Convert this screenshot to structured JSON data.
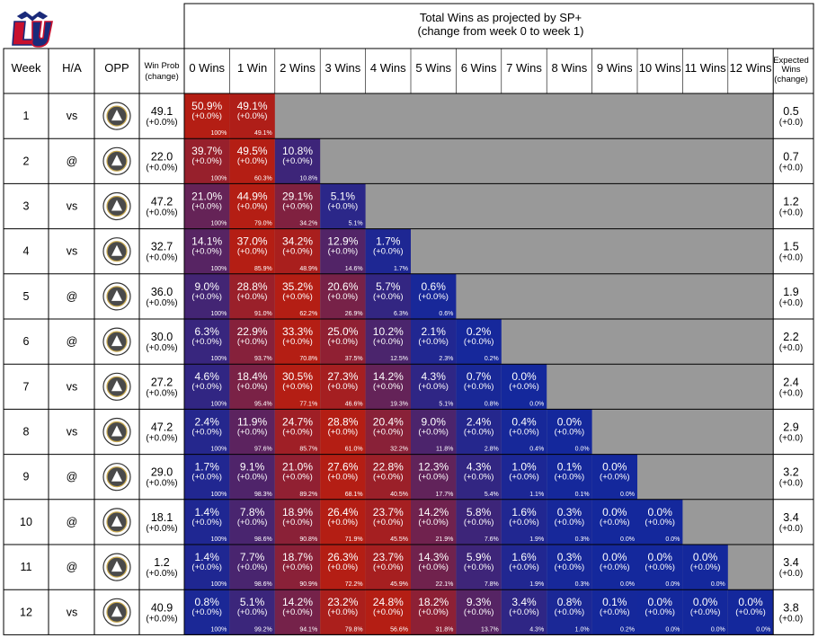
{
  "title_line1": "Total Wins as projected by SP+",
  "title_line2": "(change from week 0 to week 1)",
  "headers": {
    "week": "Week",
    "ha": "H/A",
    "opp": "OPP",
    "winprob_line1": "Win Prob",
    "winprob_line2": "(change)",
    "expected_line1": "Expected",
    "expected_line2": "Wins",
    "expected_line3": "(change)"
  },
  "colors": {
    "red": "#b41e14",
    "blue": "#14289c",
    "gray": "#999999",
    "border": "#000000"
  },
  "logo_team": "Liberty",
  "chart_data": {
    "type": "table",
    "columns": [
      "0 Wins",
      "1 Win",
      "2 Wins",
      "3 Wins",
      "4 Wins",
      "5 Wins",
      "6 Wins",
      "7 Wins",
      "8 Wins",
      "9 Wins",
      "10 Wins",
      "11 Wins",
      "12 Wins"
    ],
    "rows": [
      {
        "week": "1",
        "ha": "vs",
        "opp_logo": "Old Dominion",
        "winprob": "49.1",
        "winprob_chg": "(+0.0%)",
        "expected": "0.5",
        "expected_chg": "(+0.0)",
        "cells": [
          [
            "50.9%",
            "(+0.0%)",
            "100%"
          ],
          [
            "49.1%",
            "(+0.0%)",
            "49.1%"
          ]
        ]
      },
      {
        "week": "2",
        "ha": "@",
        "opp_logo": "Army",
        "winprob": "22.0",
        "winprob_chg": "(+0.0%)",
        "expected": "0.7",
        "expected_chg": "(+0.0)",
        "cells": [
          [
            "39.7%",
            "(+0.0%)",
            "100%"
          ],
          [
            "49.5%",
            "(+0.0%)",
            "60.3%"
          ],
          [
            "10.8%",
            "(+0.0%)",
            "10.8%"
          ]
        ]
      },
      {
        "week": "3",
        "ha": "vs",
        "opp_logo": "Western Carolina",
        "winprob": "47.2",
        "winprob_chg": "(+0.0%)",
        "expected": "1.2",
        "expected_chg": "(+0.0)",
        "cells": [
          [
            "21.0%",
            "(+0.0%)",
            "100%"
          ],
          [
            "44.9%",
            "(+0.0%)",
            "79.0%"
          ],
          [
            "29.1%",
            "(+0.0%)",
            "34.2%"
          ],
          [
            "5.1%",
            "(+0.0%)",
            "5.1%"
          ]
        ]
      },
      {
        "week": "4",
        "ha": "vs",
        "opp_logo": "North Texas",
        "winprob": "32.7",
        "winprob_chg": "(+0.0%)",
        "expected": "1.5",
        "expected_chg": "(+0.0)",
        "cells": [
          [
            "14.1%",
            "(+0.0%)",
            "100%"
          ],
          [
            "37.0%",
            "(+0.0%)",
            "85.9%"
          ],
          [
            "34.2%",
            "(+0.0%)",
            "48.9%"
          ],
          [
            "12.9%",
            "(+0.0%)",
            "14.6%"
          ],
          [
            "1.7%",
            "(+0.0%)",
            "1.7%"
          ]
        ]
      },
      {
        "week": "5",
        "ha": "@",
        "opp_logo": "New Mexico",
        "winprob": "36.0",
        "winprob_chg": "(+0.0%)",
        "expected": "1.9",
        "expected_chg": "(+0.0)",
        "cells": [
          [
            "9.0%",
            "(+0.0%)",
            "100%"
          ],
          [
            "28.8%",
            "(+0.0%)",
            "91.0%"
          ],
          [
            "35.2%",
            "(+0.0%)",
            "62.2%"
          ],
          [
            "20.6%",
            "(+0.0%)",
            "26.9%"
          ],
          [
            "5.7%",
            "(+0.0%)",
            "6.3%"
          ],
          [
            "0.6%",
            "(+0.0%)",
            "0.6%"
          ]
        ]
      },
      {
        "week": "6",
        "ha": "@",
        "opp_logo": "New Mexico State",
        "winprob": "30.0",
        "winprob_chg": "(+0.0%)",
        "expected": "2.2",
        "expected_chg": "(+0.0)",
        "cells": [
          [
            "6.3%",
            "(+0.0%)",
            "100%"
          ],
          [
            "22.9%",
            "(+0.0%)",
            "93.7%"
          ],
          [
            "33.3%",
            "(+0.0%)",
            "70.8%"
          ],
          [
            "25.0%",
            "(+0.0%)",
            "37.5%"
          ],
          [
            "10.2%",
            "(+0.0%)",
            "12.5%"
          ],
          [
            "2.1%",
            "(+0.0%)",
            "2.3%"
          ],
          [
            "0.2%",
            "(+0.0%)",
            "0.2%"
          ]
        ]
      },
      {
        "week": "7",
        "ha": "vs",
        "opp_logo": "Troy",
        "winprob": "27.2",
        "winprob_chg": "(+0.0%)",
        "expected": "2.4",
        "expected_chg": "(+0.0)",
        "cells": [
          [
            "4.6%",
            "(+0.0%)",
            "100%"
          ],
          [
            "18.4%",
            "(+0.0%)",
            "95.4%"
          ],
          [
            "30.5%",
            "(+0.0%)",
            "77.1%"
          ],
          [
            "27.3%",
            "(+0.0%)",
            "46.6%"
          ],
          [
            "14.2%",
            "(+0.0%)",
            "19.3%"
          ],
          [
            "4.3%",
            "(+0.0%)",
            "5.1%"
          ],
          [
            "0.7%",
            "(+0.0%)",
            "0.8%"
          ],
          [
            "0.0%",
            "(+0.0%)",
            "0.0%"
          ]
        ]
      },
      {
        "week": "8",
        "ha": "vs",
        "opp_logo": "Idaho State",
        "winprob": "47.2",
        "winprob_chg": "(+0.0%)",
        "expected": "2.9",
        "expected_chg": "(+0.0)",
        "cells": [
          [
            "2.4%",
            "(+0.0%)",
            "100%"
          ],
          [
            "11.9%",
            "(+0.0%)",
            "97.6%"
          ],
          [
            "24.7%",
            "(+0.0%)",
            "85.7%"
          ],
          [
            "28.8%",
            "(+0.0%)",
            "61.0%"
          ],
          [
            "20.4%",
            "(+0.0%)",
            "32.2%"
          ],
          [
            "9.0%",
            "(+0.0%)",
            "11.8%"
          ],
          [
            "2.4%",
            "(+0.0%)",
            "2.8%"
          ],
          [
            "0.4%",
            "(+0.0%)",
            "0.4%"
          ],
          [
            "0.0%",
            "(+0.0%)",
            "0.0%"
          ]
        ]
      },
      {
        "week": "9",
        "ha": "@",
        "opp_logo": "UMass",
        "winprob": "29.0",
        "winprob_chg": "(+0.0%)",
        "expected": "3.2",
        "expected_chg": "(+0.0)",
        "cells": [
          [
            "1.7%",
            "(+0.0%)",
            "100%"
          ],
          [
            "9.1%",
            "(+0.0%)",
            "98.3%"
          ],
          [
            "21.0%",
            "(+0.0%)",
            "89.2%"
          ],
          [
            "27.6%",
            "(+0.0%)",
            "68.1%"
          ],
          [
            "22.8%",
            "(+0.0%)",
            "40.5%"
          ],
          [
            "12.3%",
            "(+0.0%)",
            "17.7%"
          ],
          [
            "4.3%",
            "(+0.0%)",
            "5.4%"
          ],
          [
            "1.0%",
            "(+0.0%)",
            "1.1%"
          ],
          [
            "0.1%",
            "(+0.0%)",
            "0.1%"
          ],
          [
            "0.0%",
            "(+0.0%)",
            "0.0%"
          ]
        ]
      },
      {
        "week": "10",
        "ha": "@",
        "opp_logo": "Virginia",
        "winprob": "18.1",
        "winprob_chg": "(+0.0%)",
        "expected": "3.4",
        "expected_chg": "(+0.0)",
        "cells": [
          [
            "1.4%",
            "(+0.0%)",
            "100%"
          ],
          [
            "7.8%",
            "(+0.0%)",
            "98.6%"
          ],
          [
            "18.9%",
            "(+0.0%)",
            "90.8%"
          ],
          [
            "26.4%",
            "(+0.0%)",
            "71.9%"
          ],
          [
            "23.7%",
            "(+0.0%)",
            "45.5%"
          ],
          [
            "14.2%",
            "(+0.0%)",
            "21.9%"
          ],
          [
            "5.8%",
            "(+0.0%)",
            "7.6%"
          ],
          [
            "1.6%",
            "(+0.0%)",
            "1.9%"
          ],
          [
            "0.3%",
            "(+0.0%)",
            "0.3%"
          ],
          [
            "0.0%",
            "(+0.0%)",
            "0.0%"
          ],
          [
            "0.0%",
            "(+0.0%)",
            "0.0%"
          ]
        ]
      },
      {
        "week": "11",
        "ha": "@",
        "opp_logo": "Auburn",
        "winprob": "1.2",
        "winprob_chg": "(+0.0%)",
        "expected": "3.4",
        "expected_chg": "(+0.0)",
        "cells": [
          [
            "1.4%",
            "(+0.0%)",
            "100%"
          ],
          [
            "7.7%",
            "(+0.0%)",
            "98.6%"
          ],
          [
            "18.7%",
            "(+0.0%)",
            "90.9%"
          ],
          [
            "26.3%",
            "(+0.0%)",
            "72.2%"
          ],
          [
            "23.7%",
            "(+0.0%)",
            "45.9%"
          ],
          [
            "14.3%",
            "(+0.0%)",
            "22.1%"
          ],
          [
            "5.9%",
            "(+0.0%)",
            "7.8%"
          ],
          [
            "1.6%",
            "(+0.0%)",
            "1.9%"
          ],
          [
            "0.3%",
            "(+0.0%)",
            "0.3%"
          ],
          [
            "0.0%",
            "(+0.0%)",
            "0.0%"
          ],
          [
            "0.0%",
            "(+0.0%)",
            "0.0%"
          ],
          [
            "0.0%",
            "(+0.0%)",
            "0.0%"
          ]
        ]
      },
      {
        "week": "12",
        "ha": "vs",
        "opp_logo": "New Mexico State",
        "winprob": "40.9",
        "winprob_chg": "(+0.0%)",
        "expected": "3.8",
        "expected_chg": "(+0.0)",
        "cells": [
          [
            "0.8%",
            "(+0.0%)",
            "100%"
          ],
          [
            "5.1%",
            "(+0.0%)",
            "99.2%"
          ],
          [
            "14.2%",
            "(+0.0%)",
            "94.1%"
          ],
          [
            "23.2%",
            "(+0.0%)",
            "79.8%"
          ],
          [
            "24.8%",
            "(+0.0%)",
            "56.6%"
          ],
          [
            "18.2%",
            "(+0.0%)",
            "31.8%"
          ],
          [
            "9.3%",
            "(+0.0%)",
            "13.7%"
          ],
          [
            "3.4%",
            "(+0.0%)",
            "4.3%"
          ],
          [
            "0.8%",
            "(+0.0%)",
            "1.0%"
          ],
          [
            "0.1%",
            "(+0.0%)",
            "0.2%"
          ],
          [
            "0.0%",
            "(+0.0%)",
            "0.0%"
          ],
          [
            "0.0%",
            "(+0.0%)",
            "0.0%"
          ],
          [
            "0.0%",
            "(+0.0%)",
            "0.0%"
          ]
        ]
      }
    ]
  }
}
